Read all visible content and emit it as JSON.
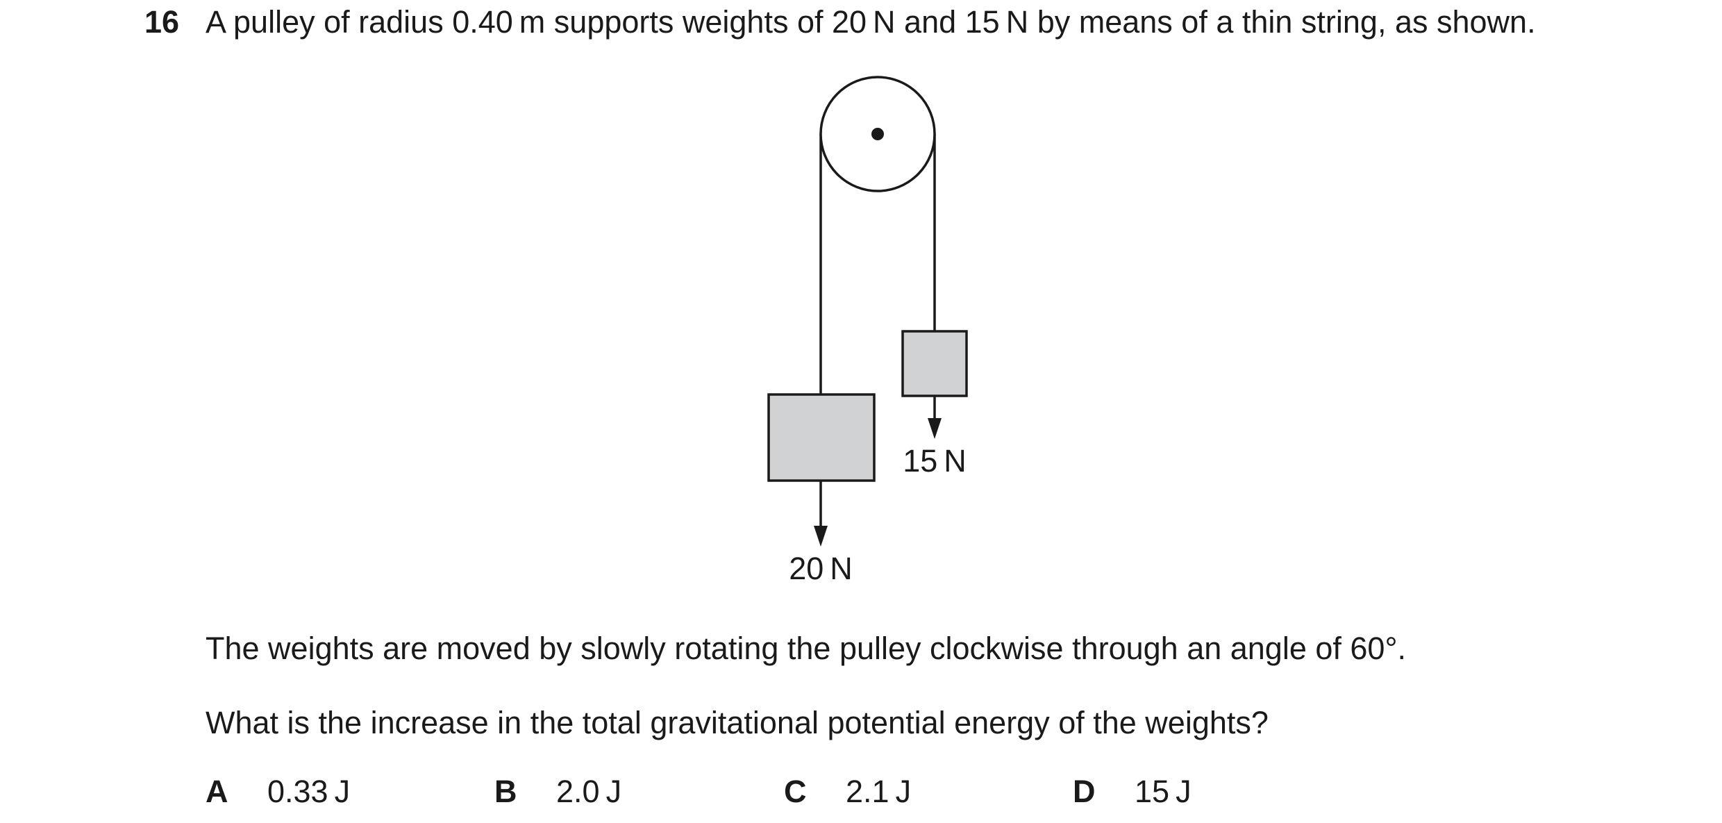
{
  "question": {
    "number": "16",
    "stem": "A pulley of radius 0.40 m supports weights of 20 N and 15 N by means of a thin string, as shown.",
    "context": "The weights are moved by slowly rotating the pulley clockwise through an angle of 60°.",
    "prompt": "What is the increase in the total gravitational potential energy of the weights?"
  },
  "diagram": {
    "label_heavy": "20 N",
    "label_light": "15 N",
    "block_fill": "#d1d2d4",
    "stroke_color": "#1a1a1a"
  },
  "options": [
    {
      "letter": "A",
      "value": "0.33 J"
    },
    {
      "letter": "B",
      "value": "2.0 J"
    },
    {
      "letter": "C",
      "value": "2.1 J"
    },
    {
      "letter": "D",
      "value": "15 J"
    }
  ]
}
